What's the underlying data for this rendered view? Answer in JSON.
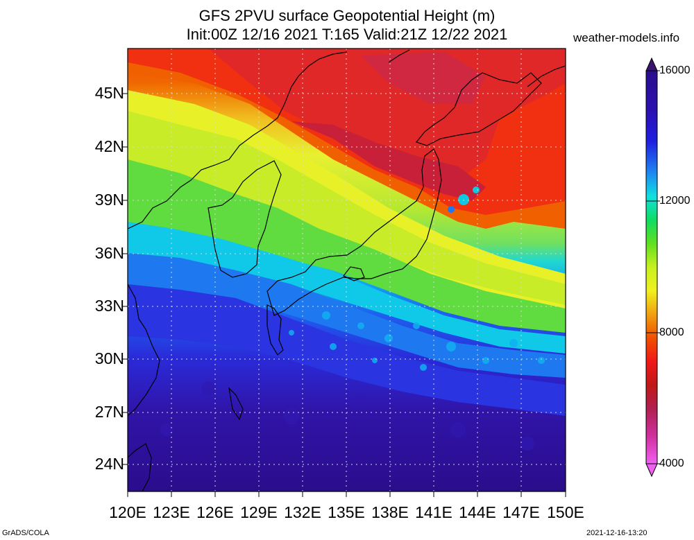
{
  "title_line1": "GFS 2PVU surface Geopotential Height (m)",
  "title_line2": "Init:00Z 12/16 2021 T:165 Valid:21Z 12/22 2021",
  "site": "weather-models.info",
  "lat_labels": [
    "45N",
    "42N",
    "39N",
    "36N",
    "33N",
    "30N",
    "27N",
    "24N"
  ],
  "lon_labels": [
    "120E",
    "123E",
    "126E",
    "129E",
    "132E",
    "135E",
    "138E",
    "141E",
    "144E",
    "147E",
    "150E"
  ],
  "colorbar_labels": [
    "16000",
    "12000",
    "8000",
    "4000"
  ],
  "colorbar_colors": [
    "#2a0d8c",
    "#2b10b0",
    "#1f1fe0",
    "#1e55f0",
    "#1e88f0",
    "#10c8f0",
    "#10e0b0",
    "#10dc40",
    "#60e020",
    "#a0e820",
    "#d8f020",
    "#f0f020",
    "#f0c010",
    "#f08c00",
    "#f05a00",
    "#f02000",
    "#d01010",
    "#a81818",
    "#b02040",
    "#c82878",
    "#e040c0",
    "#f060f0"
  ],
  "footer_left": "GrADS/COLA",
  "footer_right": "2021-12-16-13:20"
}
